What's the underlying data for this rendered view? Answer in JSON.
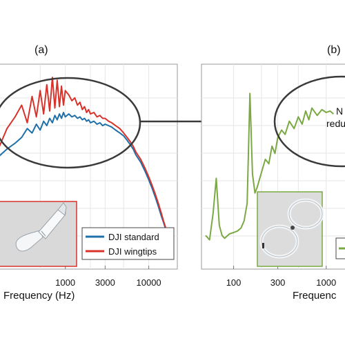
{
  "chart_data": [
    {
      "panel_label": "(a)",
      "type": "line",
      "x_scale": "log",
      "xlabel": "Frequency (Hz)",
      "ylabel": "",
      "x_ticks": [
        "1000",
        "3000",
        "10000"
      ],
      "grid": true,
      "legend_position": "bottom-right",
      "inset": "propeller blade with wingtip",
      "series": [
        {
          "name": "DJI standard",
          "color": "#1f6fa8",
          "x": [
            60,
            80,
            100,
            130,
            160,
            200,
            250,
            300,
            350,
            400,
            450,
            500,
            550,
            600,
            650,
            700,
            750,
            800,
            850,
            900,
            950,
            1000,
            1100,
            1200,
            1300,
            1400,
            1500,
            1600,
            1700,
            1800,
            1900,
            2000,
            2200,
            2400,
            2600,
            2800,
            3000,
            3300,
            3600,
            4000,
            4500,
            5000,
            5500,
            6000,
            6500,
            7000,
            8000,
            9000,
            10000,
            11000,
            12000,
            13000,
            14000,
            15000,
            16000,
            17000,
            18000,
            19000
          ],
          "y": [
            7.5,
            7.8,
            7.6,
            8.0,
            7.7,
            8.2,
            8.6,
            9.0,
            9.6,
            9.3,
            9.9,
            9.5,
            10.1,
            9.8,
            10.3,
            10.0,
            10.5,
            10.2,
            10.6,
            10.3,
            10.7,
            10.4,
            10.6,
            10.4,
            10.5,
            10.3,
            10.4,
            10.2,
            10.3,
            10.1,
            10.2,
            10.0,
            10.1,
            9.9,
            10.0,
            9.8,
            9.9,
            9.8,
            9.7,
            9.5,
            9.3,
            9.1,
            8.8,
            8.5,
            8.2,
            7.8,
            7.3,
            6.7,
            6.1,
            5.5,
            4.9,
            4.3,
            3.7,
            3.2,
            2.7,
            2.2,
            1.7,
            1.3
          ]
        },
        {
          "name": "DJI wingtips",
          "color": "#d9322b",
          "x": [
            60,
            80,
            100,
            130,
            160,
            200,
            250,
            300,
            350,
            400,
            450,
            500,
            550,
            600,
            650,
            700,
            750,
            800,
            850,
            900,
            950,
            1000,
            1100,
            1200,
            1300,
            1400,
            1500,
            1600,
            1700,
            1800,
            1900,
            2000,
            2200,
            2400,
            2600,
            2800,
            3000,
            3300,
            3600,
            4000,
            4500,
            5000,
            5500,
            6000,
            6500,
            7000,
            8000,
            9000,
            10000,
            11000,
            12000,
            13000,
            14000,
            15000,
            16000,
            17000,
            18000,
            19000
          ],
          "y": [
            8.0,
            8.6,
            8.1,
            9.0,
            8.3,
            9.6,
            10.4,
            11.2,
            10.0,
            11.8,
            10.4,
            12.2,
            10.6,
            12.6,
            10.8,
            13.1,
            11.0,
            12.9,
            11.1,
            12.5,
            11.2,
            12.2,
            11.9,
            11.5,
            11.7,
            11.2,
            11.4,
            10.9,
            11.1,
            10.7,
            10.9,
            10.6,
            10.7,
            10.4,
            10.5,
            10.3,
            10.3,
            10.1,
            10.0,
            9.8,
            9.6,
            9.3,
            9.0,
            8.7,
            8.4,
            8.0,
            7.5,
            6.9,
            6.3,
            5.7,
            5.1,
            4.5,
            3.9,
            3.3,
            2.8,
            2.3,
            1.8,
            1.2
          ]
        }
      ]
    },
    {
      "panel_label": "(b)",
      "type": "line",
      "x_scale": "log",
      "xlabel": "Frequenc",
      "ylabel": "",
      "x_ticks": [
        "100",
        "300",
        "1000"
      ],
      "grid": true,
      "inset": "ring-shaped toroidal propeller",
      "callout": [
        "N",
        "redu"
      ],
      "series": [
        {
          "name": "",
          "color": "#7aa843",
          "x": [
            50,
            55,
            60,
            65,
            70,
            75,
            80,
            90,
            100,
            110,
            120,
            130,
            140,
            150,
            160,
            170,
            180,
            200,
            220,
            240,
            260,
            280,
            300,
            330,
            360,
            400,
            450,
            500,
            550,
            600,
            650,
            700,
            800,
            900,
            1000,
            1100,
            1200
          ],
          "y": [
            2.3,
            2.0,
            3.8,
            6.2,
            3.0,
            2.3,
            2.1,
            2.4,
            2.5,
            2.6,
            2.8,
            3.3,
            4.5,
            12.0,
            6.5,
            5.2,
            5.6,
            6.6,
            7.5,
            7.2,
            8.4,
            7.9,
            9.0,
            9.5,
            9.2,
            10.1,
            9.6,
            10.4,
            9.9,
            10.8,
            10.2,
            11.0,
            10.5,
            10.9,
            10.7,
            10.8,
            10.6
          ]
        }
      ]
    }
  ]
}
